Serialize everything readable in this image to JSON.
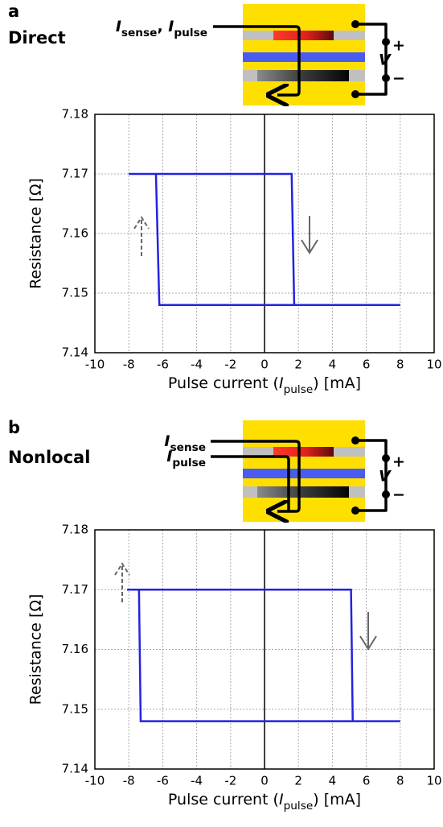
{
  "chart_data": [
    {
      "type": "line",
      "panel_label": "a",
      "title": "Direct",
      "current_labels": [
        [
          {
            "text": "I",
            "italic": true
          },
          {
            "text": "sense",
            "sub": true
          },
          {
            "text": ", "
          },
          {
            "text": "I",
            "italic": true
          },
          {
            "text": "pulse",
            "sub": true
          }
        ]
      ],
      "voltage_label": "V",
      "plus": "+",
      "minus": "−",
      "ylabel": "Resistance [Ω]",
      "xlabel": [
        {
          "text": "Pulse current ("
        },
        {
          "text": "I",
          "italic": true
        },
        {
          "text": "pulse",
          "sub": true
        },
        {
          "text": ") [mA]"
        }
      ],
      "xlim": [
        -10,
        10
      ],
      "xticks": [
        -10,
        -8,
        -6,
        -4,
        -2,
        0,
        2,
        4,
        6,
        8,
        10
      ],
      "ylim": [
        7.14,
        7.18
      ],
      "yticks": [
        7.14,
        7.15,
        7.16,
        7.17,
        7.18
      ],
      "grid": true,
      "series": [
        {
          "color": "#2323e0",
          "x": [
            -8,
            1.6,
            1.75,
            8,
            -6.2,
            -6.4,
            -8
          ],
          "y": [
            7.17,
            7.17,
            7.148,
            7.148,
            7.148,
            7.17,
            7.17
          ]
        }
      ]
    },
    {
      "type": "line",
      "panel_label": "b",
      "title": "Nonlocal",
      "current_labels": [
        [
          {
            "text": "I",
            "italic": true
          },
          {
            "text": "sense",
            "sub": true
          }
        ],
        [
          {
            "text": "I",
            "italic": true
          },
          {
            "text": "pulse",
            "sub": true
          }
        ]
      ],
      "voltage_label": "V",
      "plus": "+",
      "minus": "−",
      "ylabel": "Resistance [Ω]",
      "xlabel": [
        {
          "text": "Pulse current ("
        },
        {
          "text": "I",
          "italic": true
        },
        {
          "text": "pulse",
          "sub": true
        },
        {
          "text": ") [mA]"
        }
      ],
      "xlim": [
        -10,
        10
      ],
      "xticks": [
        -10,
        -8,
        -6,
        -4,
        -2,
        0,
        2,
        4,
        6,
        8,
        10
      ],
      "ylim": [
        7.14,
        7.18
      ],
      "yticks": [
        7.14,
        7.15,
        7.16,
        7.17,
        7.18
      ],
      "grid": true,
      "series": [
        {
          "color": "#2323e0",
          "x": [
            -8.1,
            5.1,
            5.2,
            8,
            -7.3,
            -7.4,
            -8.1
          ],
          "y": [
            7.17,
            7.17,
            7.148,
            7.148,
            7.148,
            7.17,
            7.17
          ]
        }
      ]
    }
  ]
}
